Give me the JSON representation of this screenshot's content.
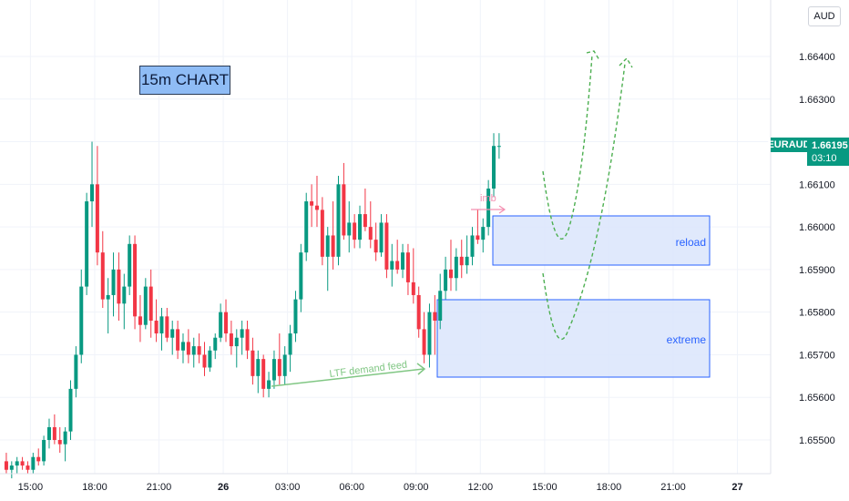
{
  "title_box": {
    "text": "15m CHART",
    "color": "#8fbcf5"
  },
  "currency": "AUD",
  "symbol": {
    "name": "EURAUD",
    "price": "1.66195",
    "countdown": "03:10",
    "color": "#089981"
  },
  "colors": {
    "up": "#089981",
    "down": "#f23645",
    "zone_fill": "#dbe5fb",
    "zone_border": "#2962ff",
    "projection": "#4caf50",
    "annotation_imb": "#f48fb1",
    "annotation_ltf": "#81c784"
  },
  "annotations": {
    "imb": "imb",
    "ltf": "LTF demand feed"
  },
  "chart_data": {
    "type": "candlestick",
    "ylim": [
      1.6545,
      1.6647
    ],
    "y_ticks": [
      1.655,
      1.656,
      1.657,
      1.658,
      1.659,
      1.66,
      1.661,
      1.662,
      1.663,
      1.664
    ],
    "y_tick_labels": [
      "1.65500",
      "1.65600",
      "1.65700",
      "1.65800",
      "1.65900",
      "1.66000",
      "1.66100",
      "1.66200",
      "1.66300",
      "1.66400"
    ],
    "x_ticks": [
      {
        "label": "15:00",
        "bold": false,
        "bar": 5
      },
      {
        "label": "18:00",
        "bold": false,
        "bar": 17
      },
      {
        "label": "21:00",
        "bold": false,
        "bar": 29
      },
      {
        "label": "26",
        "bold": true,
        "bar": 41
      },
      {
        "label": "03:00",
        "bold": false,
        "bar": 53
      },
      {
        "label": "06:00",
        "bold": false,
        "bar": 65
      },
      {
        "label": "09:00",
        "bold": false,
        "bar": 77
      },
      {
        "label": "12:00",
        "bold": false,
        "bar": 89
      },
      {
        "label": "15:00",
        "bold": false,
        "bar": 101
      },
      {
        "label": "18:00",
        "bold": false,
        "bar": 113
      },
      {
        "label": "21:00",
        "bold": false,
        "bar": 125
      },
      {
        "label": "27",
        "bold": true,
        "bar": 137
      }
    ],
    "candles": [
      [
        1.6545,
        1.6547,
        1.6542,
        1.6543
      ],
      [
        1.6543,
        1.6545,
        1.6541,
        1.6544
      ],
      [
        1.6544,
        1.6546,
        1.6542,
        1.6545
      ],
      [
        1.6545,
        1.6546,
        1.6543,
        1.6544
      ],
      [
        1.6544,
        1.6545,
        1.6542,
        1.6543
      ],
      [
        1.6543,
        1.6547,
        1.6542,
        1.6546
      ],
      [
        1.6546,
        1.6548,
        1.6544,
        1.6545
      ],
      [
        1.6545,
        1.6551,
        1.6544,
        1.655
      ],
      [
        1.655,
        1.6555,
        1.6548,
        1.6553
      ],
      [
        1.6553,
        1.6556,
        1.6549,
        1.655
      ],
      [
        1.655,
        1.6553,
        1.6547,
        1.6549
      ],
      [
        1.6549,
        1.6553,
        1.6545,
        1.6552
      ],
      [
        1.6552,
        1.6564,
        1.655,
        1.6562
      ],
      [
        1.6562,
        1.6572,
        1.656,
        1.657
      ],
      [
        1.657,
        1.659,
        1.6568,
        1.6586
      ],
      [
        1.6586,
        1.6608,
        1.6584,
        1.6606
      ],
      [
        1.6606,
        1.662,
        1.66,
        1.661
      ],
      [
        1.661,
        1.6619,
        1.6591,
        1.6594
      ],
      [
        1.6594,
        1.6599,
        1.6581,
        1.6583
      ],
      [
        1.6583,
        1.6588,
        1.6575,
        1.6584
      ],
      [
        1.6584,
        1.6594,
        1.6579,
        1.659
      ],
      [
        1.659,
        1.6594,
        1.6578,
        1.6582
      ],
      [
        1.6582,
        1.6589,
        1.6576,
        1.6586
      ],
      [
        1.6586,
        1.6598,
        1.6584,
        1.6596
      ],
      [
        1.6596,
        1.6598,
        1.6576,
        1.6579
      ],
      [
        1.6579,
        1.6584,
        1.6573,
        1.6577
      ],
      [
        1.6577,
        1.6588,
        1.6576,
        1.6586
      ],
      [
        1.6586,
        1.659,
        1.6574,
        1.6578
      ],
      [
        1.6578,
        1.6583,
        1.6573,
        1.6575
      ],
      [
        1.6575,
        1.6581,
        1.6571,
        1.6579
      ],
      [
        1.6579,
        1.6581,
        1.6573,
        1.6574
      ],
      [
        1.6574,
        1.6578,
        1.657,
        1.6576
      ],
      [
        1.6576,
        1.6578,
        1.6569,
        1.6571
      ],
      [
        1.6571,
        1.6575,
        1.6568,
        1.6573
      ],
      [
        1.6573,
        1.6576,
        1.6568,
        1.657
      ],
      [
        1.657,
        1.6574,
        1.6567,
        1.6572
      ],
      [
        1.6572,
        1.6575,
        1.6568,
        1.657
      ],
      [
        1.657,
        1.6573,
        1.6565,
        1.6567
      ],
      [
        1.6567,
        1.6572,
        1.6566,
        1.6571
      ],
      [
        1.6571,
        1.6575,
        1.6569,
        1.6574
      ],
      [
        1.6574,
        1.6582,
        1.6573,
        1.658
      ],
      [
        1.658,
        1.6583,
        1.6573,
        1.6575
      ],
      [
        1.6575,
        1.6578,
        1.657,
        1.6572
      ],
      [
        1.6572,
        1.6576,
        1.6567,
        1.6574
      ],
      [
        1.6574,
        1.6578,
        1.657,
        1.6576
      ],
      [
        1.6576,
        1.6578,
        1.6569,
        1.6571
      ],
      [
        1.6571,
        1.6574,
        1.6563,
        1.6565
      ],
      [
        1.6565,
        1.6571,
        1.6561,
        1.6569
      ],
      [
        1.6569,
        1.657,
        1.656,
        1.6562
      ],
      [
        1.6562,
        1.6566,
        1.656,
        1.6564
      ],
      [
        1.6564,
        1.6571,
        1.6562,
        1.6569
      ],
      [
        1.6569,
        1.6575,
        1.6563,
        1.6565
      ],
      [
        1.6565,
        1.6572,
        1.6563,
        1.657
      ],
      [
        1.657,
        1.6577,
        1.6566,
        1.6575
      ],
      [
        1.6575,
        1.6585,
        1.6573,
        1.6583
      ],
      [
        1.6583,
        1.6596,
        1.658,
        1.6594
      ],
      [
        1.6594,
        1.6608,
        1.6592,
        1.6606
      ],
      [
        1.6606,
        1.661,
        1.66,
        1.6605
      ],
      [
        1.6605,
        1.6612,
        1.66,
        1.6604
      ],
      [
        1.6604,
        1.6607,
        1.6591,
        1.6593
      ],
      [
        1.6593,
        1.66,
        1.6585,
        1.6598
      ],
      [
        1.6598,
        1.6606,
        1.659,
        1.6593
      ],
      [
        1.6593,
        1.6612,
        1.6591,
        1.661
      ],
      [
        1.661,
        1.6615,
        1.6597,
        1.6598
      ],
      [
        1.6598,
        1.6606,
        1.6594,
        1.6601
      ],
      [
        1.6601,
        1.6603,
        1.6595,
        1.6597
      ],
      [
        1.6597,
        1.6605,
        1.6595,
        1.6603
      ],
      [
        1.6603,
        1.6609,
        1.6599,
        1.66
      ],
      [
        1.66,
        1.6606,
        1.6595,
        1.6597
      ],
      [
        1.6597,
        1.6601,
        1.6592,
        1.6594
      ],
      [
        1.6594,
        1.6603,
        1.6593,
        1.6601
      ],
      [
        1.6601,
        1.6603,
        1.6588,
        1.659
      ],
      [
        1.659,
        1.6596,
        1.6586,
        1.6592
      ],
      [
        1.6592,
        1.6597,
        1.6589,
        1.659
      ],
      [
        1.659,
        1.6596,
        1.6588,
        1.6594
      ],
      [
        1.6594,
        1.6596,
        1.6584,
        1.6587
      ],
      [
        1.6587,
        1.6595,
        1.6582,
        1.6584
      ],
      [
        1.6584,
        1.6586,
        1.6574,
        1.6576
      ],
      [
        1.6576,
        1.658,
        1.6568,
        1.657
      ],
      [
        1.657,
        1.6582,
        1.6567,
        1.658
      ],
      [
        1.658,
        1.6584,
        1.657,
        1.6578
      ],
      [
        1.6578,
        1.6589,
        1.6576,
        1.6585
      ],
      [
        1.6585,
        1.6593,
        1.6583,
        1.659
      ],
      [
        1.659,
        1.6597,
        1.6585,
        1.6588
      ],
      [
        1.6588,
        1.6595,
        1.6585,
        1.6593
      ],
      [
        1.6593,
        1.6597,
        1.6588,
        1.6591
      ],
      [
        1.6591,
        1.6598,
        1.6589,
        1.6593
      ],
      [
        1.6593,
        1.66,
        1.6591,
        1.6598
      ],
      [
        1.6598,
        1.6604,
        1.6596,
        1.6597
      ],
      [
        1.6597,
        1.6602,
        1.6594,
        1.66
      ],
      [
        1.66,
        1.6611,
        1.6598,
        1.6609
      ],
      [
        1.6609,
        1.6622,
        1.6607,
        1.6619
      ],
      [
        1.6619,
        1.6622,
        1.6616,
        1.6619
      ]
    ]
  }
}
